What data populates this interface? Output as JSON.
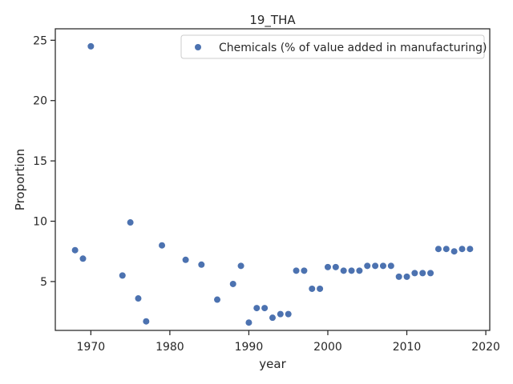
{
  "chart_data": {
    "type": "scatter",
    "title": "19_THA",
    "xlabel": "year",
    "ylabel": "Proportion",
    "xlim": [
      1965.5,
      2020.5
    ],
    "ylim": [
      0.95,
      25.95
    ],
    "xticks": [
      1970,
      1980,
      1990,
      2000,
      2010,
      2020
    ],
    "yticks": [
      5,
      10,
      15,
      20,
      25
    ],
    "grid": false,
    "legend_position": "top-right",
    "color": "#4c72b0",
    "series": [
      {
        "name": "Chemicals (% of value added in manufacturing)",
        "points": [
          [
            1968,
            7.6
          ],
          [
            1969,
            6.9
          ],
          [
            1970,
            24.5
          ],
          [
            1974,
            5.5
          ],
          [
            1975,
            9.9
          ],
          [
            1976,
            3.6
          ],
          [
            1977,
            1.7
          ],
          [
            1979,
            8.0
          ],
          [
            1982,
            6.8
          ],
          [
            1984,
            6.4
          ],
          [
            1986,
            3.5
          ],
          [
            1988,
            4.8
          ],
          [
            1989,
            6.3
          ],
          [
            1990,
            1.6
          ],
          [
            1991,
            2.8
          ],
          [
            1992,
            2.8
          ],
          [
            1993,
            2.0
          ],
          [
            1994,
            2.3
          ],
          [
            1995,
            2.3
          ],
          [
            1996,
            5.9
          ],
          [
            1997,
            5.9
          ],
          [
            1998,
            4.4
          ],
          [
            1999,
            4.4
          ],
          [
            2000,
            6.2
          ],
          [
            2001,
            6.2
          ],
          [
            2002,
            5.9
          ],
          [
            2003,
            5.9
          ],
          [
            2004,
            5.9
          ],
          [
            2005,
            6.3
          ],
          [
            2006,
            6.3
          ],
          [
            2007,
            6.3
          ],
          [
            2008,
            6.3
          ],
          [
            2009,
            5.4
          ],
          [
            2010,
            5.4
          ],
          [
            2011,
            5.7
          ],
          [
            2012,
            5.7
          ],
          [
            2013,
            5.7
          ],
          [
            2014,
            7.7
          ],
          [
            2015,
            7.7
          ],
          [
            2016,
            7.5
          ],
          [
            2017,
            7.7
          ],
          [
            2018,
            7.7
          ]
        ]
      }
    ]
  }
}
